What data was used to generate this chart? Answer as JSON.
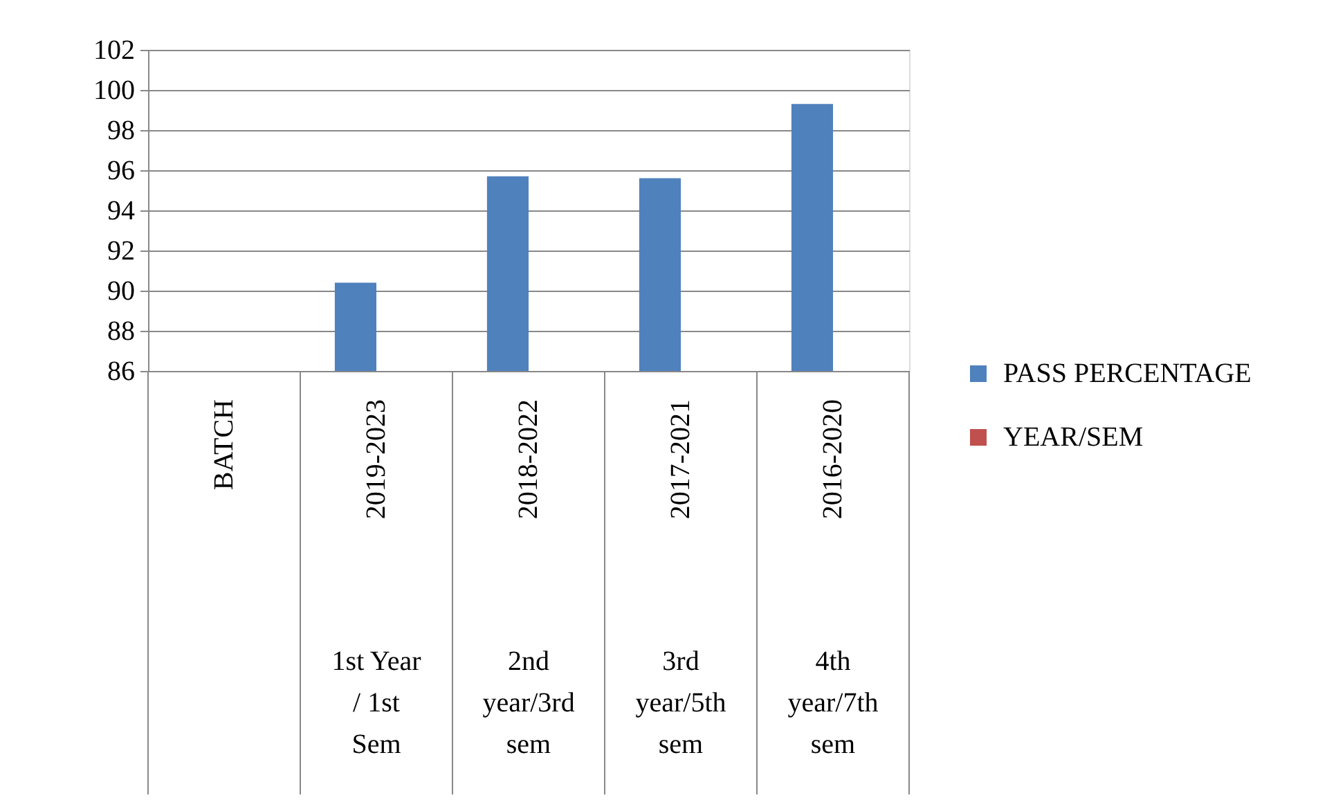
{
  "chart_data": {
    "type": "bar",
    "categories": [
      "BATCH",
      "2019-2023",
      "2018-2022",
      "2017-2021",
      "2016-2020"
    ],
    "series": [
      {
        "name": "PASS PERCENTAGE",
        "color": "#4f81bd",
        "values": [
          null,
          90.4,
          95.7,
          95.6,
          99.3
        ]
      },
      {
        "name": "YEAR/SEM",
        "color": "#c0504d",
        "values": [
          null,
          null,
          null,
          null,
          null
        ]
      }
    ],
    "ylim": [
      86,
      102
    ],
    "yticks": [
      86,
      88,
      90,
      92,
      94,
      96,
      98,
      100,
      102
    ],
    "grid": "y",
    "legend": "right",
    "annotations": [
      "1st Year / 1st Sem",
      "2nd year/3rd sem",
      "3rd year/5th sem",
      "4th year/7th sem"
    ]
  }
}
